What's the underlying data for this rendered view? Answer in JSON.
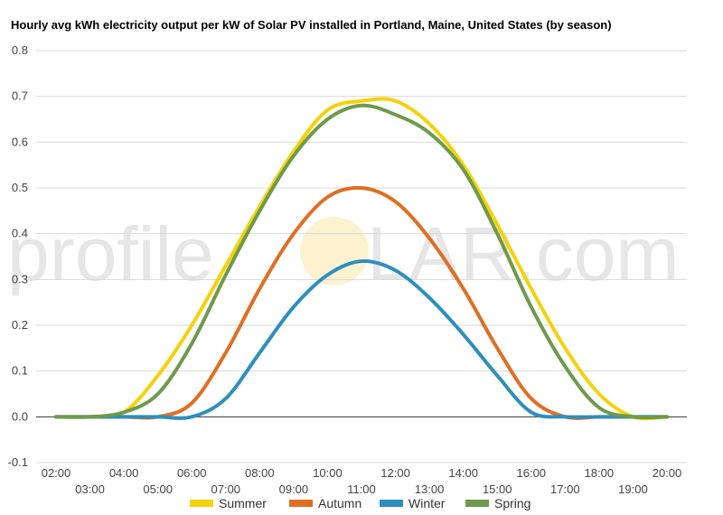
{
  "chart_data": {
    "type": "line",
    "title": "Hourly avg kWh electricity output per kW of Solar PV installed in Portland, Maine, United States (by season)",
    "watermark": {
      "left": "profile",
      "right": "LAR.com"
    },
    "xlabel": "",
    "ylabel": "",
    "ylim": [
      -0.1,
      0.8
    ],
    "yticks": [
      -0.1,
      0.0,
      0.1,
      0.2,
      0.3,
      0.4,
      0.5,
      0.6,
      0.7,
      0.8
    ],
    "ytick_labels": [
      "-0.1",
      "0.0",
      "0.1",
      "0.2",
      "0.3",
      "0.4",
      "0.5",
      "0.6",
      "0.7",
      "0.8"
    ],
    "x": [
      "02:00",
      "03:00",
      "04:00",
      "05:00",
      "06:00",
      "07:00",
      "08:00",
      "09:00",
      "10:00",
      "11:00",
      "12:00",
      "13:00",
      "14:00",
      "15:00",
      "16:00",
      "17:00",
      "18:00",
      "19:00",
      "20:00"
    ],
    "grid": true,
    "legend_position": "bottom",
    "series": [
      {
        "name": "Summer",
        "color": "#f5d20a",
        "values": [
          0.0,
          0.0,
          0.01,
          0.09,
          0.2,
          0.33,
          0.46,
          0.58,
          0.67,
          0.69,
          0.69,
          0.64,
          0.55,
          0.42,
          0.28,
          0.15,
          0.05,
          0.0,
          0.0
        ]
      },
      {
        "name": "Autumn",
        "color": "#e06f23",
        "values": [
          0.0,
          0.0,
          0.0,
          0.0,
          0.03,
          0.14,
          0.28,
          0.4,
          0.48,
          0.5,
          0.47,
          0.39,
          0.28,
          0.15,
          0.04,
          0.0,
          0.0,
          0.0,
          0.0
        ]
      },
      {
        "name": "Winter",
        "color": "#2d8fbd",
        "values": [
          0.0,
          0.0,
          0.0,
          0.0,
          0.0,
          0.04,
          0.14,
          0.24,
          0.31,
          0.34,
          0.32,
          0.26,
          0.18,
          0.09,
          0.01,
          0.0,
          0.0,
          0.0,
          0.0
        ]
      },
      {
        "name": "Spring",
        "color": "#6e9a4c",
        "values": [
          0.0,
          0.0,
          0.01,
          0.05,
          0.16,
          0.31,
          0.45,
          0.57,
          0.65,
          0.68,
          0.66,
          0.62,
          0.54,
          0.4,
          0.24,
          0.11,
          0.02,
          0.0,
          0.0
        ]
      }
    ]
  }
}
